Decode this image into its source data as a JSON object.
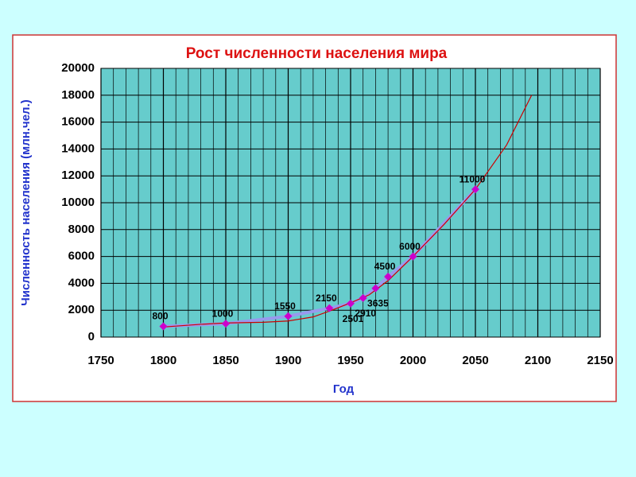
{
  "chart_data": {
    "type": "line",
    "title": "Рост численности населения мира",
    "x_label": "Год",
    "y_label": "Численность населения (млн.чел.)",
    "x": [
      1800,
      1850,
      1900,
      1933,
      1950,
      1960,
      1970,
      1980,
      2000,
      2050
    ],
    "series": [
      {
        "color": "#cc00cc",
        "line_color": "#9999ee",
        "values": [
          800,
          1000,
          1550,
          2150,
          2501,
          2910,
          3635,
          4500,
          6000,
          11000
        ]
      }
    ],
    "trend": {
      "color": "#cc0000",
      "x": [
        1800,
        1830,
        1850,
        1880,
        1900,
        1920,
        1935,
        1950,
        1965,
        1980,
        2000,
        2025,
        2050,
        2075,
        2095
      ],
      "values": [
        750,
        950,
        1050,
        1100,
        1200,
        1500,
        2000,
        2550,
        3150,
        4200,
        6000,
        8400,
        11000,
        14300,
        18000
      ]
    },
    "xlim": [
      1750,
      2150
    ],
    "xticks": [
      1750,
      1800,
      1850,
      1900,
      1950,
      2000,
      2050,
      2100,
      2150
    ],
    "ylim": [
      0,
      20000
    ],
    "yticks": [
      0,
      2000,
      4000,
      6000,
      8000,
      10000,
      12000,
      14000,
      16000,
      18000,
      20000
    ],
    "grid": true
  }
}
